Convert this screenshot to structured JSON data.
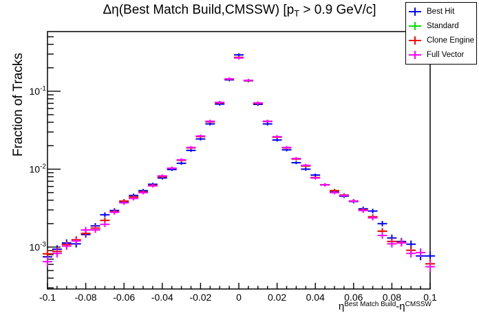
{
  "title": {
    "pre": "Δη(Best Match Build,CMSSW) [p",
    "sub": "T",
    "post": " > 0.9 GeV/c]"
  },
  "axes": {
    "y_title": "Fraction of Tracks",
    "x_title": {
      "base1": "η",
      "sup1": "Best Match Build",
      "base2": "-η",
      "sup2": "CMSSW"
    },
    "x_ticks": [
      {
        "label": "-0.1",
        "value": -0.1
      },
      {
        "label": "-0.08",
        "value": -0.08
      },
      {
        "label": "-0.06",
        "value": -0.06
      },
      {
        "label": "-0.04",
        "value": -0.04
      },
      {
        "label": "-0.02",
        "value": -0.02
      },
      {
        "label": "0",
        "value": 0
      },
      {
        "label": "0.02",
        "value": 0.02
      },
      {
        "label": "0.04",
        "value": 0.04
      },
      {
        "label": "0.06",
        "value": 0.06
      },
      {
        "label": "0.08",
        "value": 0.08
      },
      {
        "label": "0.1",
        "value": 0.1
      }
    ],
    "y_ticks": [
      {
        "mantissa": "10",
        "exp": "-1",
        "value": 0.1
      },
      {
        "mantissa": "10",
        "exp": "-2",
        "value": 0.01
      },
      {
        "mantissa": "10",
        "exp": "-3",
        "value": 0.001
      }
    ]
  },
  "legend": {
    "items": [
      {
        "label": "Best Hit",
        "color": "#0000ff"
      },
      {
        "label": "Standard",
        "color": "#00e000"
      },
      {
        "label": "Clone Engine",
        "color": "#ff0000"
      },
      {
        "label": "Full Vector",
        "color": "#ff00ff"
      }
    ]
  },
  "chart_data": {
    "type": "scatter",
    "marker": "horizontal-error-bar-cross",
    "title": "Δη(Best Match Build,CMSSW) [pT > 0.9 GeV/c]",
    "xlabel": "eta(Best Match Build) - eta(CMSSW)",
    "ylabel": "Fraction of Tracks",
    "y_scale": "log",
    "xlim": [
      -0.1,
      0.1
    ],
    "ylim": [
      0.00029,
      0.583
    ],
    "bin_width": 0.005,
    "grid": false,
    "legend_position": "top-right",
    "x": [
      -0.1,
      -0.095,
      -0.09,
      -0.085,
      -0.08,
      -0.075,
      -0.07,
      -0.065,
      -0.06,
      -0.055,
      -0.05,
      -0.045,
      -0.04,
      -0.035,
      -0.03,
      -0.025,
      -0.02,
      -0.015,
      -0.01,
      -0.005,
      0,
      0.005,
      0.01,
      0.015,
      0.02,
      0.025,
      0.03,
      0.035,
      0.04,
      0.045,
      0.05,
      0.055,
      0.06,
      0.065,
      0.07,
      0.075,
      0.08,
      0.085,
      0.09,
      0.095,
      0.1
    ],
    "series": [
      {
        "name": "Best Hit",
        "color": "#0000ff",
        "values": [
          0.00075,
          0.00094,
          0.00113,
          0.0011,
          0.00145,
          0.00187,
          0.0026,
          0.00295,
          0.0038,
          0.0046,
          0.0053,
          0.0064,
          0.0077,
          0.0099,
          0.0119,
          0.0174,
          0.0244,
          0.0381,
          0.0684,
          0.14,
          0.293,
          0.136,
          0.0679,
          0.0381,
          0.0237,
          0.0177,
          0.0121,
          0.01,
          0.0084,
          0.0063,
          0.0052,
          0.0045,
          0.00385,
          0.0031,
          0.0029,
          0.002,
          0.00131,
          0.00118,
          0.00109,
          0.00077,
          0.00077
        ]
      },
      {
        "name": "Standard",
        "color": "#00e000",
        "values": [
          0.00082,
          0.00088,
          0.00108,
          0.00124,
          0.0015,
          0.00175,
          0.0022,
          0.00285,
          0.0039,
          0.0044,
          0.0051,
          0.0062,
          0.008,
          0.0103,
          0.013,
          0.0188,
          0.0262,
          0.0405,
          0.071,
          0.143,
          0.272,
          0.137,
          0.07,
          0.041,
          0.0258,
          0.0188,
          0.0135,
          0.011,
          0.0078,
          0.0063,
          0.0053,
          0.00465,
          0.0039,
          0.003,
          0.00245,
          0.0016,
          0.00118,
          0.00115,
          0.00091,
          0.00085,
          0.00061
        ]
      },
      {
        "name": "Clone Engine",
        "color": "#ff0000",
        "values": [
          0.00082,
          0.00088,
          0.00108,
          0.00124,
          0.0015,
          0.00175,
          0.0022,
          0.00285,
          0.0039,
          0.0044,
          0.0051,
          0.0062,
          0.008,
          0.0103,
          0.013,
          0.0188,
          0.0262,
          0.0405,
          0.071,
          0.143,
          0.272,
          0.137,
          0.07,
          0.041,
          0.0258,
          0.0188,
          0.0135,
          0.011,
          0.0078,
          0.0063,
          0.0053,
          0.00465,
          0.0039,
          0.003,
          0.00245,
          0.0016,
          0.00118,
          0.00115,
          0.00091,
          0.00085,
          0.00061
        ]
      },
      {
        "name": "Full Vector",
        "color": "#ff00ff",
        "values": [
          0.00065,
          0.00083,
          0.00103,
          0.0012,
          0.00166,
          0.00166,
          0.00196,
          0.0028,
          0.0037,
          0.0042,
          0.005,
          0.0061,
          0.0082,
          0.0103,
          0.0132,
          0.019,
          0.0266,
          0.0412,
          0.0719,
          0.144,
          0.267,
          0.138,
          0.0708,
          0.0412,
          0.0261,
          0.019,
          0.0137,
          0.0112,
          0.0077,
          0.0063,
          0.005,
          0.0046,
          0.0039,
          0.00295,
          0.00237,
          0.00141,
          0.0011,
          0.00113,
          0.00083,
          0.00085,
          0.00056
        ]
      }
    ]
  }
}
